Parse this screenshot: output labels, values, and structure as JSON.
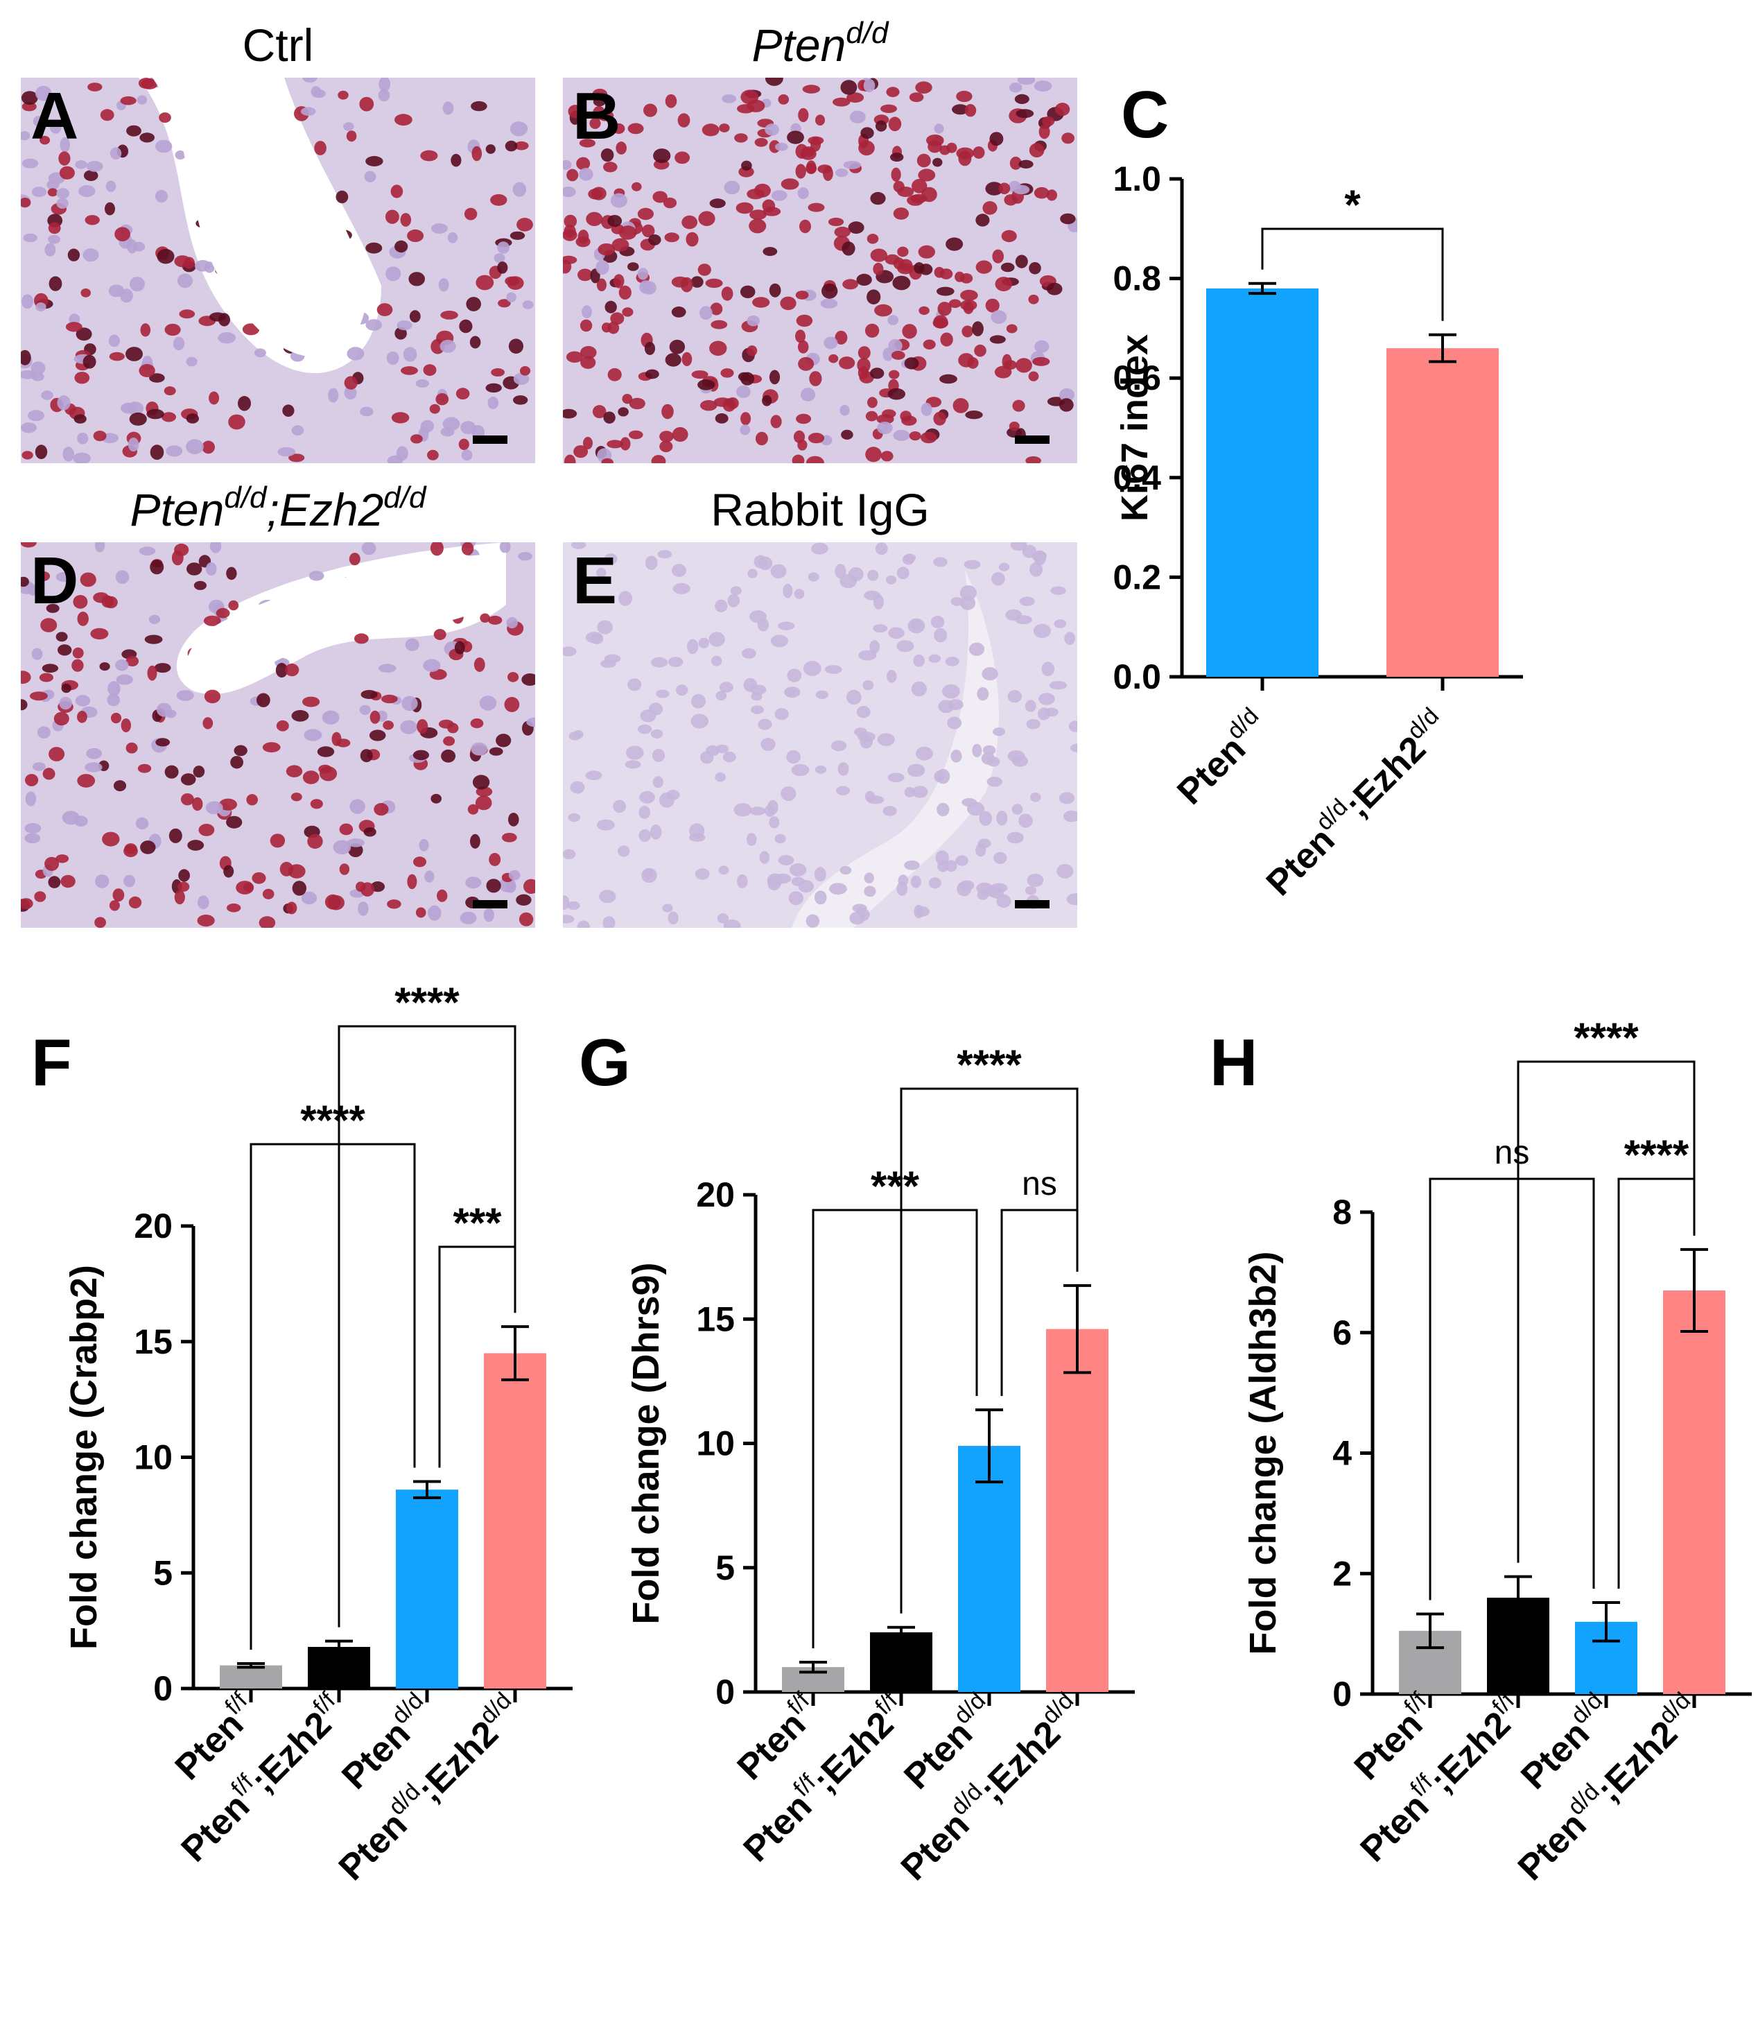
{
  "micrographs": [
    {
      "letter": "A",
      "title": "Ctrl",
      "italic": false
    },
    {
      "letter": "B",
      "title_main": "Pten",
      "title_sup": "d/d",
      "italic": true
    },
    {
      "letter": "D",
      "title_main": "Pten",
      "title_sup": "d/d",
      "title_main2": ";Ezh2",
      "title_sup2": "d/d",
      "italic": true
    },
    {
      "letter": "E",
      "title": "Rabbit IgG",
      "italic": false
    }
  ],
  "colors": {
    "grey": "#a6a6a8",
    "black": "#000000",
    "blue": "#12a3ff",
    "pink": "#ff8585",
    "stain_bg": "#d9cde6",
    "nucleus": "#a8243b",
    "nucleus_dark": "#5a0c1f",
    "ctrl_bg": "#ffffff",
    "igg_bg": "#e3dcec"
  },
  "chart_data": [
    {
      "panel": "C",
      "type": "bar",
      "ylabel": "Ki67 index",
      "ylim": [
        0,
        1.0
      ],
      "yticks": [
        "0.0",
        "0.2",
        "0.4",
        "0.6",
        "0.8",
        "1.0"
      ],
      "categories": [
        {
          "main": "Pten",
          "sup": "d/d"
        },
        {
          "main": "Pten",
          "sup": "d/d",
          "main2": ";Ezh2",
          "sup2": "d/d"
        }
      ],
      "values": [
        0.78,
        0.66
      ],
      "errors": [
        0.01,
        0.027
      ],
      "colors": [
        "blue",
        "pink"
      ],
      "significance": [
        {
          "from": 0,
          "to": 1,
          "label": "*"
        }
      ]
    },
    {
      "panel": "F",
      "type": "bar",
      "ylabel": "Fold change (Crabp2)",
      "ylim": [
        0,
        20
      ],
      "yticks": [
        "0",
        "5",
        "10",
        "15",
        "20"
      ],
      "categories": [
        {
          "main": "Pten",
          "sup": "f/f"
        },
        {
          "main": "Pten",
          "sup": "f/f",
          "main2": ";Ezh2",
          "sup2": "f/f"
        },
        {
          "main": "Pten",
          "sup": "d/d"
        },
        {
          "main": "Pten",
          "sup": "d/d",
          "main2": ";Ezh2",
          "sup2": "d/d"
        }
      ],
      "values": [
        1.0,
        1.8,
        8.6,
        14.5
      ],
      "errors": [
        0.08,
        0.25,
        0.35,
        1.15
      ],
      "colors": [
        "grey",
        "black",
        "blue",
        "pink"
      ],
      "significance": [
        {
          "from": 1,
          "to": 3,
          "label": "****"
        },
        {
          "from": 0,
          "to": 2,
          "label": "****"
        },
        {
          "from": 2,
          "to": 3,
          "label": "***"
        }
      ]
    },
    {
      "panel": "G",
      "type": "bar",
      "ylabel": "Fold change (Dhrs9)",
      "ylim": [
        0,
        20
      ],
      "yticks": [
        "0",
        "5",
        "10",
        "15",
        "20"
      ],
      "categories": [
        {
          "main": "Pten",
          "sup": "f/f"
        },
        {
          "main": "Pten",
          "sup": "f/f",
          "main2": ";Ezh2",
          "sup2": "f/f"
        },
        {
          "main": "Pten",
          "sup": "d/d"
        },
        {
          "main": "Pten",
          "sup": "d/d",
          "main2": ";Ezh2",
          "sup2": "d/d"
        }
      ],
      "values": [
        1.0,
        2.4,
        9.9,
        14.6
      ],
      "errors": [
        0.2,
        0.2,
        1.45,
        1.75
      ],
      "colors": [
        "grey",
        "black",
        "blue",
        "pink"
      ],
      "significance": [
        {
          "from": 1,
          "to": 3,
          "label": "****"
        },
        {
          "from": 0,
          "to": 2,
          "label": "***"
        },
        {
          "from": 2,
          "to": 3,
          "label": "ns"
        }
      ]
    },
    {
      "panel": "H",
      "type": "bar",
      "ylabel": "Fold change (Aldh3b2)",
      "ylim": [
        0,
        8
      ],
      "yticks": [
        "0",
        "2",
        "4",
        "6",
        "8"
      ],
      "categories": [
        {
          "main": "Pten",
          "sup": "f/f"
        },
        {
          "main": "Pten",
          "sup": "f/f",
          "main2": ";Ezh2",
          "sup2": "f/f"
        },
        {
          "main": "Pten",
          "sup": "d/d"
        },
        {
          "main": "Pten",
          "sup": "d/d",
          "main2": ";Ezh2",
          "sup2": "d/d"
        }
      ],
      "values": [
        1.05,
        1.6,
        1.2,
        6.7
      ],
      "errors": [
        0.28,
        0.35,
        0.32,
        0.68
      ],
      "colors": [
        "grey",
        "black",
        "blue",
        "pink"
      ],
      "significance": [
        {
          "from": 1,
          "to": 3,
          "label": "****"
        },
        {
          "from": 0,
          "to": 2,
          "label": "ns"
        },
        {
          "from": 2,
          "to": 3,
          "label": "****"
        }
      ]
    }
  ]
}
